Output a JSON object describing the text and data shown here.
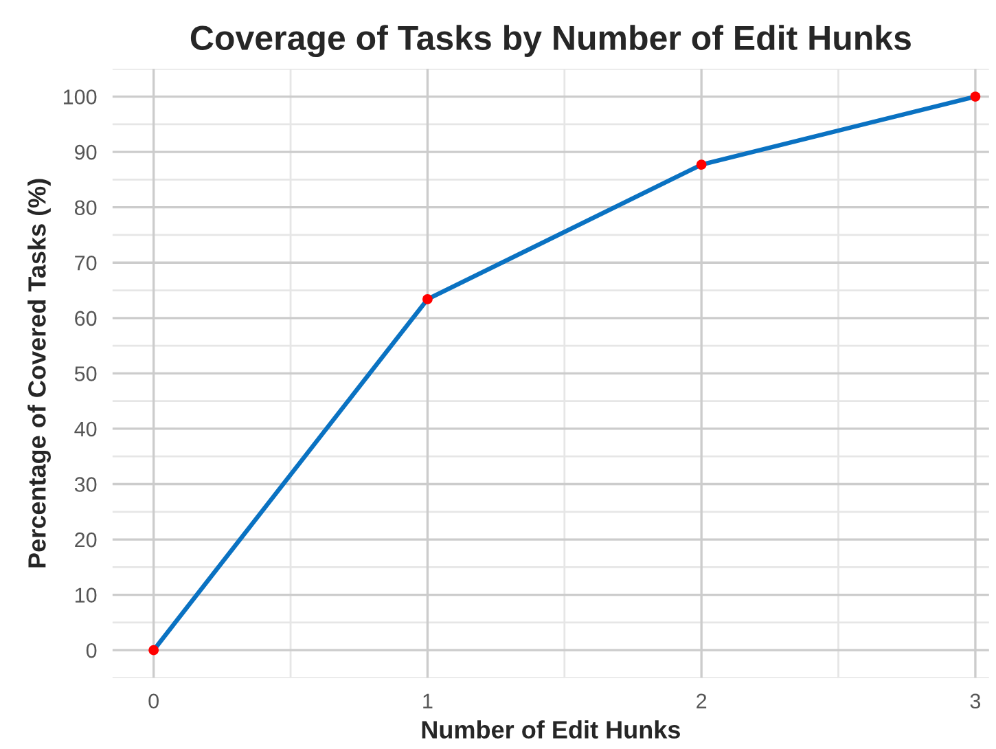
{
  "chart_data": {
    "type": "line",
    "title": "Coverage of Tasks by Number of Edit Hunks",
    "xlabel": "Number of Edit Hunks",
    "ylabel": "Percentage of Covered Tasks (%)",
    "x": [
      0,
      1,
      2,
      3
    ],
    "series": [
      {
        "color": "#0a72c2",
        "colors": [
          "#ff0000",
          "#ff0000",
          "#ff0000",
          "#ff0000"
        ],
        "values": [
          0,
          63.4,
          87.7,
          100
        ]
      }
    ],
    "xlim": [
      -0.15,
      3.05
    ],
    "xticks": [
      0,
      1,
      2,
      3
    ],
    "ylim": [
      -5,
      105
    ],
    "yticks": [
      0,
      10,
      20,
      30,
      40,
      50,
      60,
      70,
      80,
      90,
      100
    ],
    "grid": true,
    "marker": "circle",
    "line_style": "solid"
  }
}
